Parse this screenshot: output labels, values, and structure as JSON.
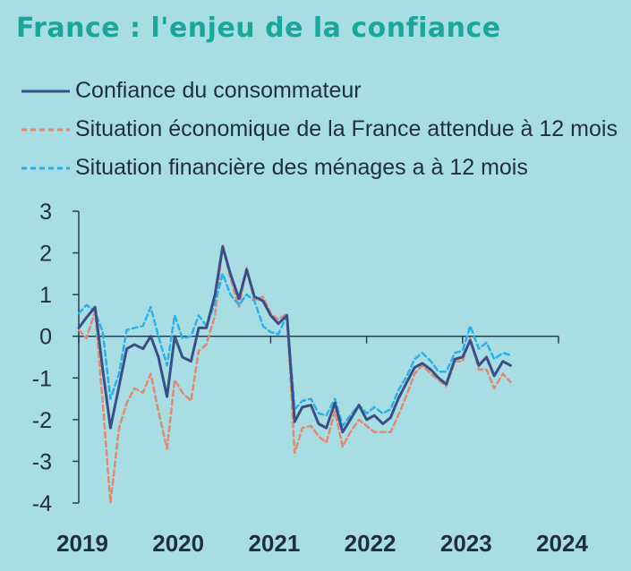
{
  "title": "France : l'enjeu de la confiance",
  "colors": {
    "background": "#a9dde4",
    "title": "#1aa79b",
    "text": "#1f2d45",
    "axis": "#2b3a55"
  },
  "legend": {
    "items": [
      {
        "label": "Confiance du consommateur",
        "color": "#3a4f86",
        "style": "solid"
      },
      {
        "label": "Situation économique de la France attendue à 12 mois",
        "color": "#e08a72",
        "style": "dashed"
      },
      {
        "label": "Situation financière des ménages a à 12 mois",
        "color": "#2bb0ea",
        "style": "dashed"
      }
    ]
  },
  "chart_data": {
    "type": "line",
    "title": "France : l'enjeu de la confiance",
    "xlabel": "",
    "ylabel": "",
    "xlim": [
      2019,
      2024
    ],
    "ylim": [
      -4,
      3
    ],
    "x_ticks": [
      "2019",
      "2020",
      "2021",
      "2022",
      "2023",
      "2024"
    ],
    "y_ticks": [
      "3",
      "2",
      "1",
      "0",
      "-1",
      "-2",
      "-3",
      "-4"
    ],
    "grid": false,
    "legend_position": "top-left",
    "x": [
      2019.0,
      2019.08,
      2019.17,
      2019.25,
      2019.33,
      2019.42,
      2019.5,
      2019.58,
      2019.67,
      2019.75,
      2019.83,
      2019.92,
      2020.0,
      2020.08,
      2020.17,
      2020.25,
      2020.33,
      2020.42,
      2020.5,
      2020.58,
      2020.67,
      2020.75,
      2020.83,
      2020.92,
      2021.0,
      2021.08,
      2021.17,
      2021.25,
      2021.33,
      2021.42,
      2021.5,
      2021.58,
      2021.67,
      2021.75,
      2021.83,
      2021.92,
      2022.0,
      2022.08,
      2022.17,
      2022.25,
      2022.33,
      2022.42,
      2022.5,
      2022.58,
      2022.67,
      2022.75,
      2022.83,
      2022.92,
      2023.0,
      2023.08,
      2023.17,
      2023.25,
      2023.33,
      2023.42,
      2023.5
    ],
    "series": [
      {
        "name": "Confiance du consommateur",
        "color": "#3a4f86",
        "style": "solid",
        "values": [
          0.2,
          0.45,
          0.7,
          -0.8,
          -2.2,
          -1.2,
          -0.3,
          -0.2,
          -0.3,
          0.0,
          -0.5,
          -1.45,
          0.0,
          -0.5,
          -0.6,
          0.2,
          0.2,
          1.0,
          2.15,
          1.5,
          0.9,
          1.6,
          0.95,
          0.85,
          0.5,
          0.3,
          0.5,
          -2.05,
          -1.7,
          -1.65,
          -2.1,
          -2.2,
          -1.6,
          -2.3,
          -2.0,
          -1.65,
          -2.0,
          -1.9,
          -2.1,
          -1.95,
          -1.5,
          -1.1,
          -0.75,
          -0.65,
          -0.8,
          -1.0,
          -1.15,
          -0.55,
          -0.5,
          -0.1,
          -0.7,
          -0.5,
          -0.95,
          -0.6,
          -0.7
        ]
      },
      {
        "name": "Situation économique de la France attendue à 12 mois",
        "color": "#e08a72",
        "style": "dashed",
        "values": [
          0.15,
          -0.05,
          0.6,
          -1.6,
          -4.0,
          -2.2,
          -1.6,
          -1.25,
          -1.35,
          -0.9,
          -1.8,
          -2.7,
          -1.05,
          -1.35,
          -1.55,
          -0.35,
          -0.2,
          0.5,
          2.2,
          1.4,
          0.7,
          1.65,
          0.85,
          0.95,
          0.55,
          0.4,
          0.55,
          -2.8,
          -2.2,
          -2.15,
          -2.4,
          -2.55,
          -1.8,
          -2.65,
          -2.3,
          -2.0,
          -2.15,
          -2.3,
          -2.3,
          -2.3,
          -1.9,
          -1.4,
          -0.9,
          -0.7,
          -0.9,
          -1.05,
          -1.2,
          -0.6,
          -0.6,
          -0.05,
          -0.8,
          -0.8,
          -1.25,
          -0.9,
          -1.1
        ]
      },
      {
        "name": "Situation financière des ménages a à 12 mois",
        "color": "#2bb0ea",
        "style": "dashed",
        "values": [
          0.55,
          0.75,
          0.6,
          0.1,
          -1.5,
          -0.9,
          0.15,
          0.2,
          0.25,
          0.7,
          0.0,
          -0.7,
          0.5,
          -0.05,
          0.0,
          0.5,
          0.25,
          0.8,
          1.5,
          1.0,
          0.75,
          1.0,
          0.85,
          0.25,
          0.1,
          0.05,
          0.5,
          -1.75,
          -1.55,
          -1.5,
          -1.85,
          -1.9,
          -1.5,
          -2.15,
          -1.9,
          -1.65,
          -1.85,
          -1.7,
          -1.85,
          -1.75,
          -1.3,
          -0.95,
          -0.55,
          -0.4,
          -0.6,
          -0.85,
          -0.85,
          -0.4,
          -0.35,
          0.25,
          -0.3,
          -0.15,
          -0.55,
          -0.4,
          -0.45
        ]
      }
    ]
  }
}
